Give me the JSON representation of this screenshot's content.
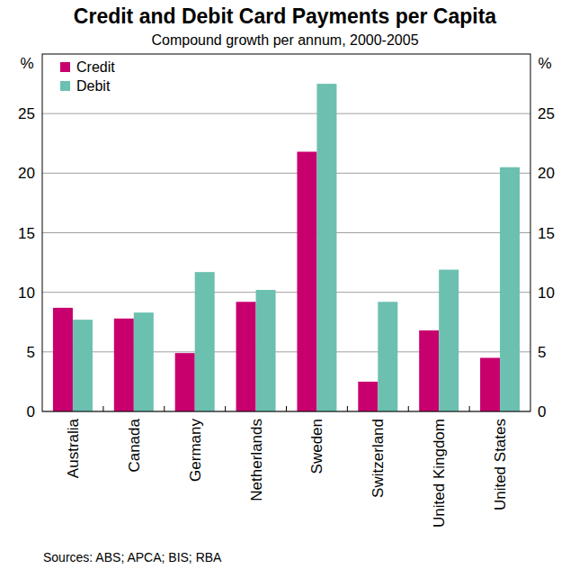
{
  "chart_data": {
    "type": "bar",
    "title": "Credit and Debit Card Payments per Capita",
    "subtitle": "Compound growth per annum, 2000-2005",
    "y_label": "%",
    "source": "Sources: ABS; APCA; BIS; RBA",
    "categories": [
      "Australia",
      "Canada",
      "Germany",
      "Netherlands",
      "Sweden",
      "Switzerland",
      "United Kingdom",
      "United States"
    ],
    "series": [
      {
        "name": "Credit",
        "color": "#c8006e",
        "values": [
          8.7,
          7.8,
          4.9,
          9.2,
          21.8,
          2.5,
          6.8,
          4.5
        ]
      },
      {
        "name": "Debit",
        "color": "#6cc0b0",
        "values": [
          7.7,
          8.3,
          11.7,
          10.2,
          27.5,
          9.2,
          11.9,
          20.5
        ]
      }
    ],
    "ylim": [
      0,
      30
    ],
    "yticks": [
      0,
      5,
      10,
      15,
      20,
      25
    ],
    "grid": true,
    "legend": "top-left"
  }
}
